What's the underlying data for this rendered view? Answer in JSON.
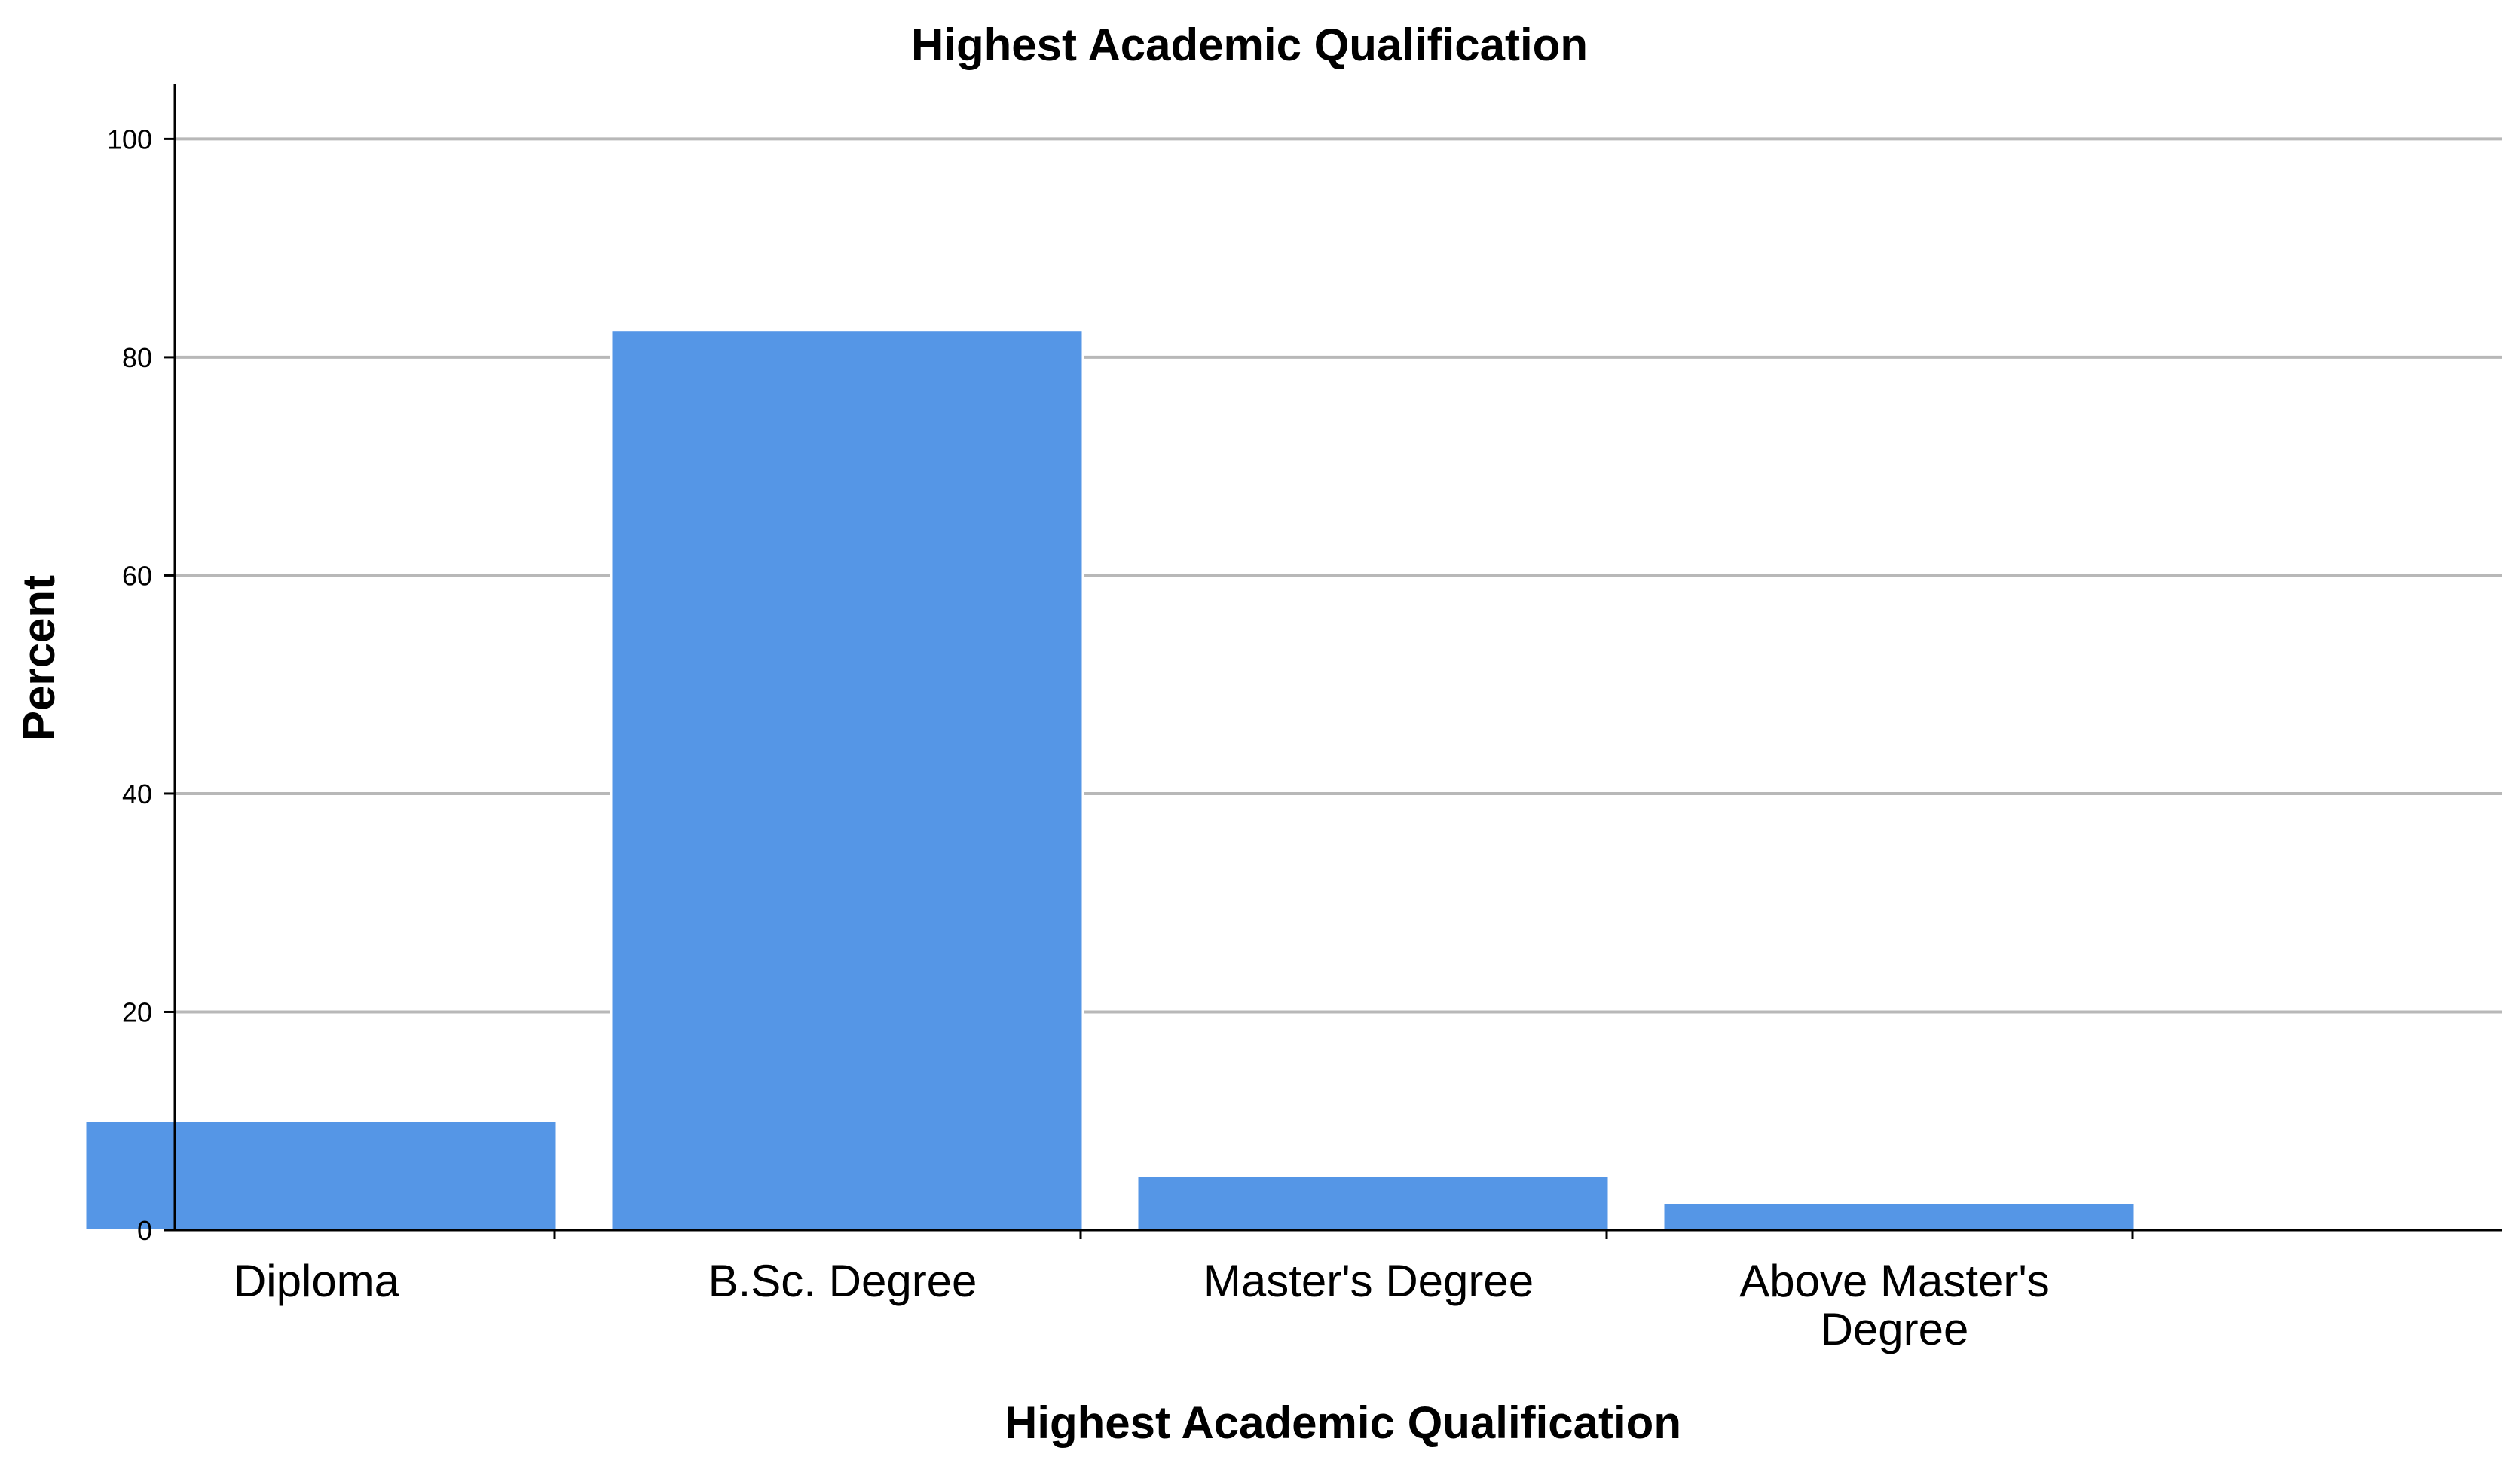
{
  "chart_data": {
    "type": "bar",
    "title": "Highest Academic Qualification",
    "xlabel": "Highest Academic Qualification",
    "ylabel": "Percent",
    "categories": [
      [
        "Diploma"
      ],
      [
        "B.Sc. Degree"
      ],
      [
        "Master's Degree"
      ],
      [
        "Above Master's",
        "Degree"
      ]
    ],
    "values": [
      10,
      82.5,
      5,
      2.5
    ],
    "ylim": [
      0,
      105
    ],
    "yticks": [
      0,
      20,
      40,
      60,
      80,
      100
    ],
    "grid": true,
    "bar_color": "#5596e6",
    "grid_color": "#b8b8b8"
  }
}
